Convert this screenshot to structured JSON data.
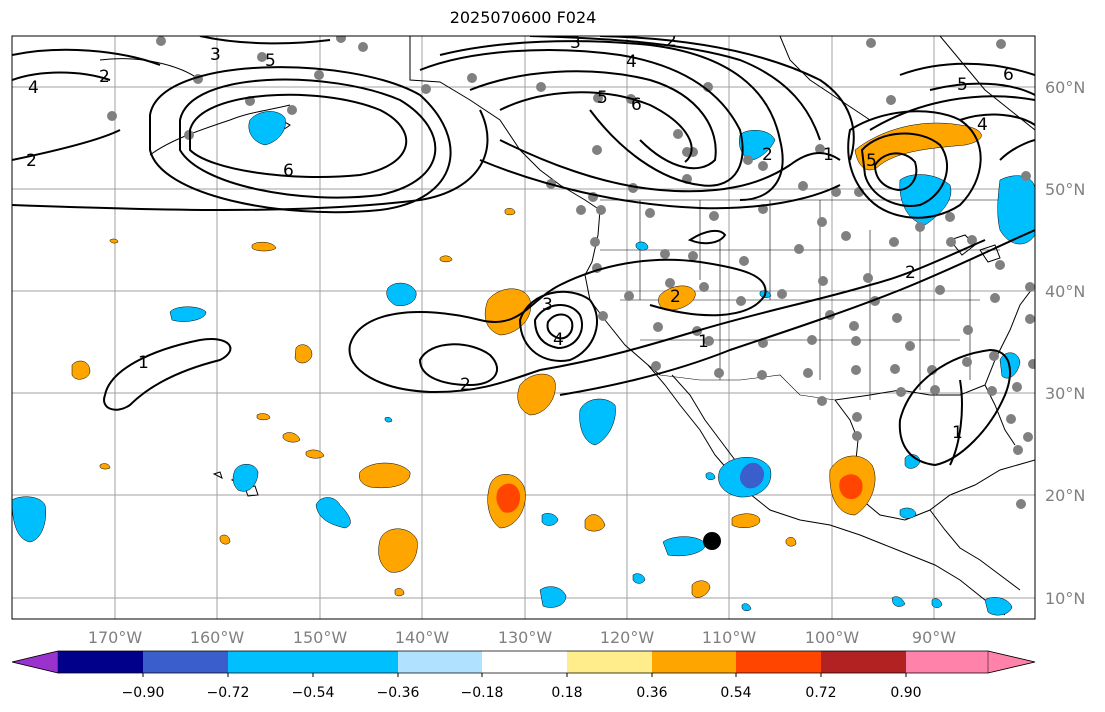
{
  "title": "2025070600 F024",
  "lat_labels": [
    "60°N",
    "50°N",
    "40°N",
    "30°N",
    "20°N",
    "10°N"
  ],
  "lon_labels": [
    "170°W",
    "160°W",
    "150°W",
    "140°W",
    "130°W",
    "120°W",
    "110°W",
    "100°W",
    "90°W"
  ],
  "colorbar": {
    "ticks": [
      "−0.90",
      "−0.72",
      "−0.54",
      "−0.36",
      "−0.18",
      "0.18",
      "0.36",
      "0.54",
      "0.72",
      "0.90"
    ],
    "colors": [
      "#9a32cd",
      "#00008b",
      "#3a5fcd",
      "#00bfff",
      "#b0e2ff",
      "#ffffff",
      "#ffec8b",
      "#ffa500",
      "#ff4500",
      "#b22222",
      "#ff82ab"
    ]
  },
  "contour_labels": [
    "3",
    "2",
    "4",
    "5",
    "6",
    "2",
    "3",
    "2",
    "4",
    "5",
    "6",
    "5",
    "6",
    "4",
    "5",
    "2",
    "1",
    "2",
    "3",
    "4",
    "2",
    "1",
    "1",
    "2",
    "1"
  ],
  "colors": {
    "grid": "#a0a0a0",
    "station": "#808080",
    "contour": "#000000",
    "orange": "#ffa500",
    "red": "#ff4500",
    "blue": "#00bfff",
    "darkblue": "#3a5fcd"
  }
}
